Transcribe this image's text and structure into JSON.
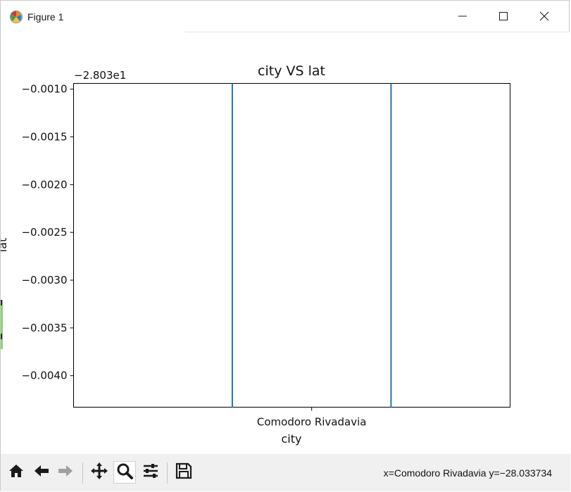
{
  "window": {
    "title": "Figure 1",
    "icons": {
      "app": "matplotlib-icon",
      "minimize": "minimize-icon",
      "maximize": "maximize-icon",
      "close": "close-icon"
    }
  },
  "chart_data": {
    "type": "line",
    "title": "city VS lat",
    "xlabel": "city",
    "ylabel": "lat",
    "offset_text": "−2.803e1",
    "x_categories": [
      "Comodoro Rivadavia"
    ],
    "ylim": [
      -0.00433,
      -0.00094
    ],
    "yticks": [
      -0.001,
      -0.0015,
      -0.002,
      -0.0025,
      -0.003,
      -0.0035,
      -0.004
    ],
    "ytick_labels": [
      "−0.0010",
      "−0.0015",
      "−0.0020",
      "−0.0025",
      "−0.0030",
      "−0.0035",
      "−0.0040"
    ],
    "series": [
      {
        "color": "#1f77b4",
        "segments": [
          {
            "x": -0.4,
            "y": [
              -0.00433,
              -0.00094
            ]
          },
          {
            "x": 0.4,
            "y": [
              -0.00433,
              -0.00094
            ]
          }
        ]
      }
    ],
    "xlim": [
      -1.2,
      1.0
    ],
    "grid": false,
    "legend": "none"
  },
  "toolbar": {
    "tools": [
      {
        "name": "home-icon",
        "active": false
      },
      {
        "name": "back-arrow-icon",
        "active": false
      },
      {
        "name": "forward-arrow-icon",
        "active": false,
        "disabled": true
      },
      {
        "name": "pan-icon",
        "active": false
      },
      {
        "name": "zoom-icon",
        "active": true
      },
      {
        "name": "subplots-config-icon",
        "active": false
      },
      {
        "name": "save-icon",
        "active": false
      }
    ],
    "status": "x=Comodoro Rivadavia y=−28.033734"
  },
  "colors": {
    "accent": "#1f77b4",
    "toolbar_bg": "#f0f0f0",
    "icon": "#1a1a1a"
  }
}
